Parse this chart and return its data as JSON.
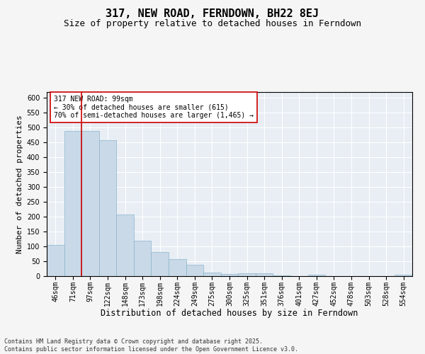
{
  "title": "317, NEW ROAD, FERNDOWN, BH22 8EJ",
  "subtitle": "Size of property relative to detached houses in Ferndown",
  "xlabel": "Distribution of detached houses by size in Ferndown",
  "ylabel": "Number of detached properties",
  "categories": [
    "46sqm",
    "71sqm",
    "97sqm",
    "122sqm",
    "148sqm",
    "173sqm",
    "198sqm",
    "224sqm",
    "249sqm",
    "275sqm",
    "300sqm",
    "325sqm",
    "351sqm",
    "376sqm",
    "401sqm",
    "427sqm",
    "452sqm",
    "478sqm",
    "503sqm",
    "528sqm",
    "554sqm"
  ],
  "values": [
    105,
    490,
    490,
    458,
    207,
    120,
    82,
    57,
    38,
    13,
    8,
    10,
    10,
    3,
    0,
    5,
    0,
    0,
    0,
    0,
    5
  ],
  "bar_color": "#c9d9e8",
  "bar_edge_color": "#8ab4cc",
  "vline_x": 1.5,
  "vline_color": "#cc0000",
  "annotation_text": "317 NEW ROAD: 99sqm\n← 30% of detached houses are smaller (615)\n70% of semi-detached houses are larger (1,465) →",
  "annotation_box_color": "#ffffff",
  "annotation_box_edge_color": "#cc0000",
  "ylim": [
    0,
    620
  ],
  "yticks": [
    0,
    50,
    100,
    150,
    200,
    250,
    300,
    350,
    400,
    450,
    500,
    550,
    600
  ],
  "background_color": "#e8eef4",
  "grid_color": "#ffffff",
  "footer": "Contains HM Land Registry data © Crown copyright and database right 2025.\nContains public sector information licensed under the Open Government Licence v3.0.",
  "title_fontsize": 11,
  "subtitle_fontsize": 9,
  "xlabel_fontsize": 8.5,
  "ylabel_fontsize": 8,
  "tick_fontsize": 7,
  "annotation_fontsize": 7,
  "footer_fontsize": 6
}
